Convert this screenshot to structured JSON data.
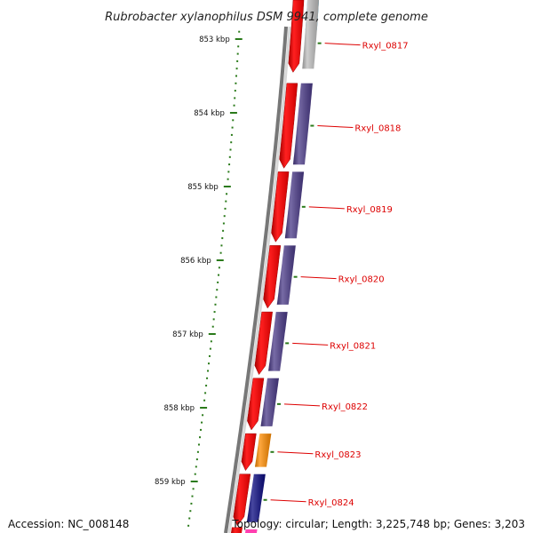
{
  "title": "Rubrobacter xylanophilus DSM 9941, complete genome",
  "footer": {
    "accession": "Accession: NC_008148",
    "summary": "Topology: circular; Length: 3,225,748 bp; Genes: 3,203"
  },
  "kbp_marks": [
    {
      "label": "853 kbp",
      "kbp": 853
    },
    {
      "label": "854 kbp",
      "kbp": 854
    },
    {
      "label": "855 kbp",
      "kbp": 855
    },
    {
      "label": "856 kbp",
      "kbp": 856
    },
    {
      "label": "857 kbp",
      "kbp": 857
    },
    {
      "label": "858 kbp",
      "kbp": 858
    },
    {
      "label": "859 kbp",
      "kbp": 859
    }
  ],
  "genes": [
    {
      "label": "Rxyl_0817",
      "start_kbp": 852.2,
      "end_kbp": 853.45,
      "label_color": "#dd0000",
      "cog_color": "#bdbdbd"
    },
    {
      "label": "Rxyl_0818",
      "start_kbp": 853.6,
      "end_kbp": 854.75,
      "label_color": "#dd0000",
      "cog_color": "#4a3a88"
    },
    {
      "label": "Rxyl_0819",
      "start_kbp": 854.8,
      "end_kbp": 855.75,
      "label_color": "#dd0000",
      "cog_color": "#4a3a88"
    },
    {
      "label": "Rxyl_0820",
      "start_kbp": 855.8,
      "end_kbp": 856.65,
      "label_color": "#dd0000",
      "cog_color": "#4a3a88"
    },
    {
      "label": "Rxyl_0821",
      "start_kbp": 856.7,
      "end_kbp": 857.55,
      "label_color": "#dd0000",
      "cog_color": "#4a3a88"
    },
    {
      "label": "Rxyl_0822",
      "start_kbp": 857.6,
      "end_kbp": 858.3,
      "label_color": "#dd0000",
      "cog_color": "#4a3a88"
    },
    {
      "label": "Rxyl_0823",
      "start_kbp": 858.35,
      "end_kbp": 858.85,
      "label_color": "#dd0000",
      "cog_color": "#ff8c00"
    },
    {
      "label": "Rxyl_0824",
      "start_kbp": 858.9,
      "end_kbp": 859.6,
      "label_color": "#dd0000",
      "cog_color": "#0a0a80"
    }
  ],
  "colors": {
    "cds": "#ff1010",
    "backbone": "#777777",
    "tick": "#2a7a1a",
    "top_cog": "#22b5e8",
    "bottom_cog": "#ff40b0"
  }
}
